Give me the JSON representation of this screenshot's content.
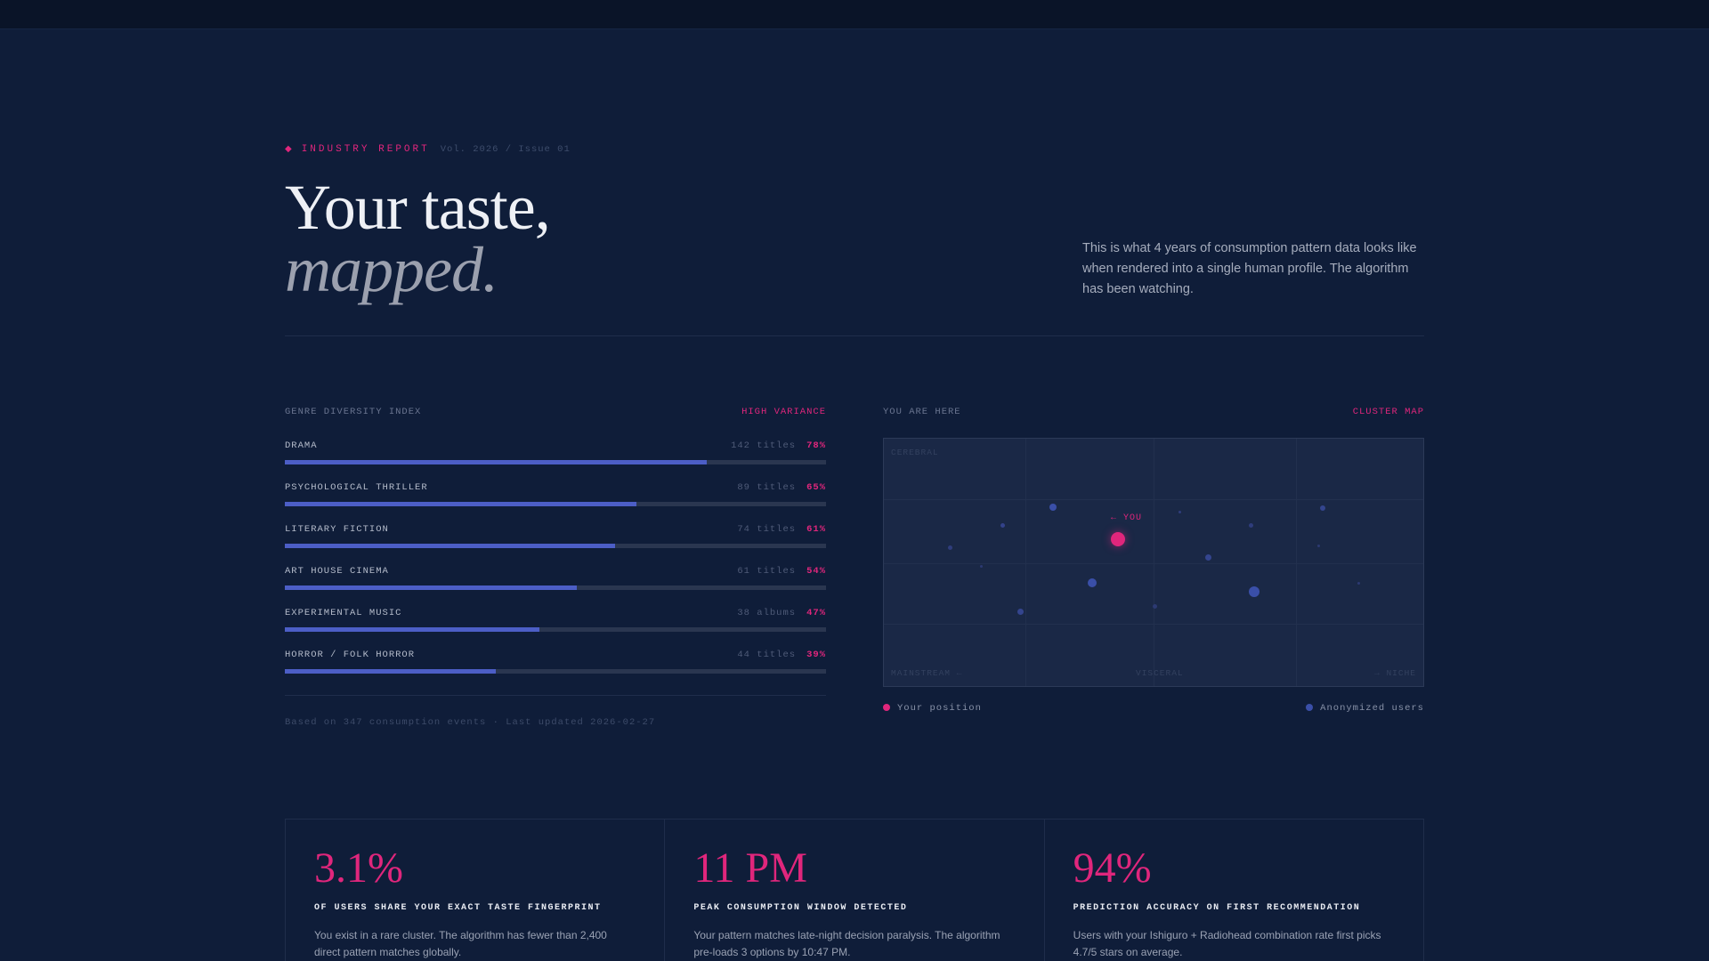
{
  "header": {
    "kicker_icon": "diamond-icon",
    "kicker": "INDUSTRY REPORT",
    "volume": "Vol. 2026 / Issue 01",
    "headline_1": "Your taste,",
    "headline_2": "mapped.",
    "intro": "This is what 4 years of consumption pattern data looks like when rendered into a single human profile. The algorithm has been watching."
  },
  "genre_panel": {
    "title": "GENRE DIVERSITY INDEX",
    "tag": "HIGH VARIANCE",
    "items": [
      {
        "name": "DRAMA",
        "meta": "142 titles",
        "pct": "78%",
        "value": 78
      },
      {
        "name": "PSYCHOLOGICAL THRILLER",
        "meta": "89 titles",
        "pct": "65%",
        "value": 65
      },
      {
        "name": "LITERARY FICTION",
        "meta": "74 titles",
        "pct": "61%",
        "value": 61
      },
      {
        "name": "ART HOUSE CINEMA",
        "meta": "61 titles",
        "pct": "54%",
        "value": 54
      },
      {
        "name": "EXPERIMENTAL MUSIC",
        "meta": "38 albums",
        "pct": "47%",
        "value": 47
      },
      {
        "name": "HORROR / FOLK HORROR",
        "meta": "44 titles",
        "pct": "39%",
        "value": 39
      }
    ],
    "footnote": "Based on 347 consumption events · Last updated 2026-02-27"
  },
  "cluster_panel": {
    "title": "YOU ARE HERE",
    "tag": "CLUSTER MAP",
    "axis_top": "CEREBRAL",
    "axis_left": "MAINSTREAM ←",
    "axis_mid": "VISCERAL",
    "axis_right": "→ NICHE",
    "you_label": "← YOU",
    "legend_you": "Your position",
    "legend_others": "Anonymized users",
    "you_color": "#e0267c",
    "others_color": "#3a4fa8"
  },
  "stats": [
    {
      "num": "3.1%",
      "caption": "OF USERS SHARE YOUR EXACT TASTE FINGERPRINT",
      "desc": "You exist in a rare cluster. The algorithm has fewer than 2,400 direct pattern matches globally."
    },
    {
      "num": "11 PM",
      "caption": "PEAK CONSUMPTION WINDOW DETECTED",
      "desc": "Your pattern matches late-night decision paralysis. The algorithm pre-loads 3 options by 10:47 PM."
    },
    {
      "num": "94%",
      "caption": "PREDICTION ACCURACY ON FIRST RECOMMENDATION",
      "desc": "Users with your Ishiguro + Radiohead combination rate first picks 4.7/5 stars on average."
    }
  ]
}
